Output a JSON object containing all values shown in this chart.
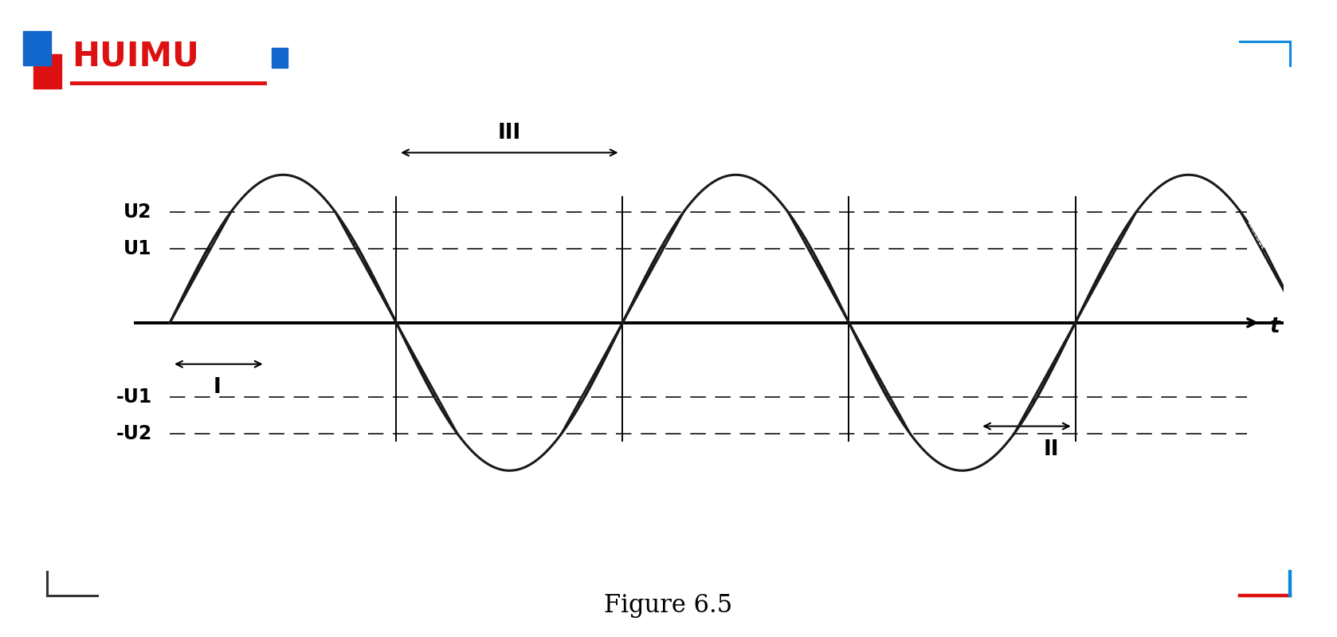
{
  "amplitude": 1.0,
  "U1": 0.5,
  "U2": 0.75,
  "period": 1.0,
  "fig_title": "Figure 6.5",
  "xlabel": "t",
  "ylabel_U1": "U1",
  "ylabel_U2": "U2",
  "ylabel_nU1": "-U1",
  "ylabel_nU2": "-U2",
  "label_I": "I",
  "label_II": "II",
  "label_III": "III",
  "hatch_pattern": "////",
  "hatch_color": "#1a1a1a",
  "wave_color": "#1a1a1a",
  "axis_color": "#000000",
  "dashed_color": "#333333",
  "bg_color": "#ffffff",
  "logo_text": "HUIMU",
  "logo_color_red": "#dd1111",
  "logo_color_blue": "#1166cc",
  "corner_color_blue": "#1188dd",
  "corner_color_red": "#dd1111",
  "corner_color_dark": "#333333",
  "figsize": [
    16.78,
    7.99
  ],
  "dpi": 100
}
